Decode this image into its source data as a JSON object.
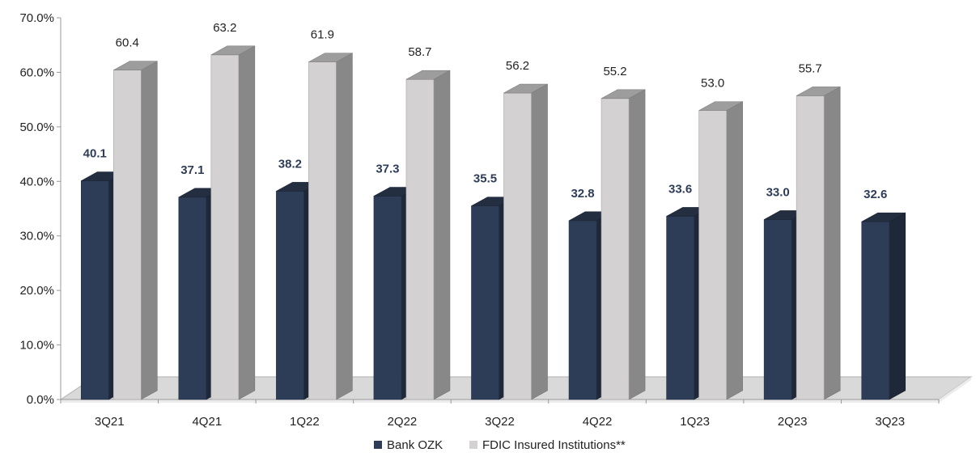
{
  "chart_data": {
    "type": "bar",
    "categories": [
      "3Q21",
      "4Q21",
      "1Q22",
      "2Q22",
      "3Q22",
      "4Q22",
      "1Q23",
      "2Q23",
      "3Q23"
    ],
    "series": [
      {
        "name": "Bank OZK",
        "values": [
          40.1,
          37.1,
          38.2,
          37.3,
          35.5,
          32.8,
          33.6,
          33.0,
          32.6
        ],
        "labels": [
          "40.1",
          "37.1",
          "38.2",
          "37.3",
          "35.5",
          "32.8",
          "33.6",
          "33.0",
          "32.6"
        ],
        "color": "#2e3d57",
        "label_color": "#2e3d57"
      },
      {
        "name": "FDIC Insured Institutions**",
        "values": [
          60.4,
          63.2,
          61.9,
          58.7,
          56.2,
          55.2,
          53.0,
          55.7,
          null
        ],
        "labels": [
          "60.4",
          "63.2",
          "61.9",
          "58.7",
          "56.2",
          "55.2",
          "53.0",
          "55.7",
          ""
        ],
        "color": "#d3d1d2",
        "label_color": "#222222"
      }
    ],
    "ylim": [
      0,
      70
    ],
    "yticks": [
      "0.0%",
      "10.0%",
      "20.0%",
      "30.0%",
      "40.0%",
      "50.0%",
      "60.0%",
      "70.0%"
    ],
    "grid": false,
    "legend": "bottom",
    "style": "3d-bar"
  }
}
